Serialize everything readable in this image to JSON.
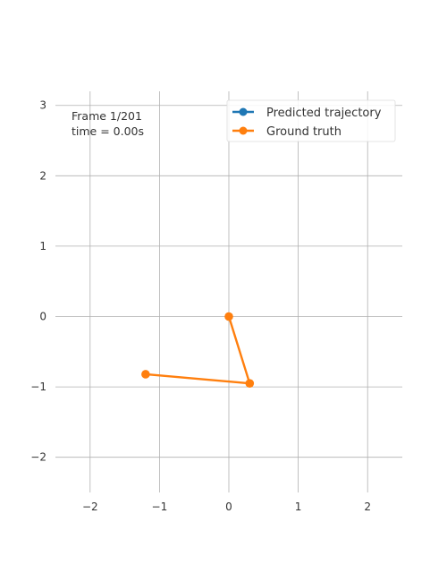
{
  "chart_data": {
    "type": "line",
    "title": "",
    "xlabel": "",
    "ylabel": "",
    "xlim": [
      -2.5,
      2.5
    ],
    "ylim": [
      -2.5,
      3.2
    ],
    "xticks": [
      -2,
      -1,
      0,
      1,
      2
    ],
    "yticks": [
      -2,
      -1,
      0,
      1,
      2,
      3
    ],
    "xtick_labels": [
      "−2",
      "−1",
      "0",
      "1",
      "2"
    ],
    "ytick_labels": [
      "−2",
      "−1",
      "0",
      "1",
      "2",
      "3"
    ],
    "grid": true,
    "legend_position": "top-right",
    "annotations": [
      "Frame 1/201",
      "time = 0.00s"
    ],
    "series": [
      {
        "name": "Predicted trajectory",
        "color": "#1f77b4",
        "x": [],
        "y": []
      },
      {
        "name": "Ground truth",
        "color": "#ff7f0e",
        "x": [
          0,
          0.3,
          -1.2
        ],
        "y": [
          0,
          -0.95,
          -0.82
        ]
      }
    ]
  }
}
